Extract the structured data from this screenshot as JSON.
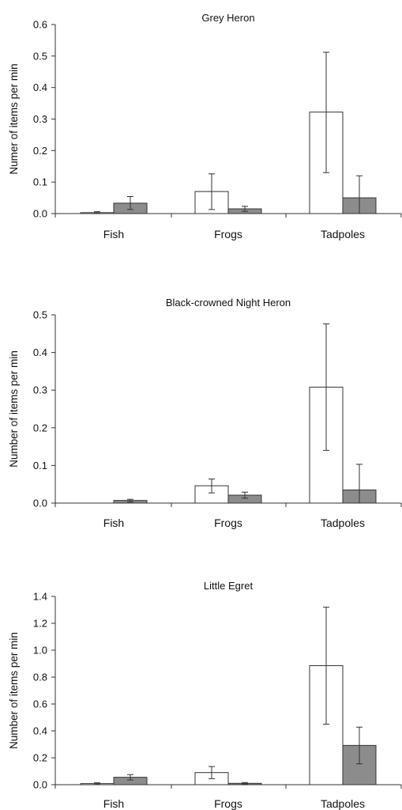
{
  "chart_data": [
    {
      "type": "bar",
      "title": "Grey Heron",
      "ylabel": "Numer of items per min",
      "xlabel": "",
      "categories": [
        "Fish",
        "Frogs",
        "Tadpoles"
      ],
      "ylim": [
        0,
        0.6
      ],
      "yticks": [
        "0.0",
        "0.1",
        "0.2",
        "0.3",
        "0.4",
        "0.5",
        "0.6"
      ],
      "series": [
        {
          "color": "#ffffff",
          "values": [
            0.003,
            0.07,
            0.322
          ],
          "err_low": [
            0.001,
            0.013,
            0.13
          ],
          "err_high": [
            0.006,
            0.126,
            0.512
          ]
        },
        {
          "color": "#8c8c8c",
          "values": [
            0.033,
            0.015,
            0.05
          ],
          "err_low": [
            0.013,
            0.007,
            0.0
          ],
          "err_high": [
            0.054,
            0.023,
            0.12
          ]
        }
      ]
    },
    {
      "type": "bar",
      "title": "Black-crowned Night Heron",
      "ylabel": "Number of items per min",
      "xlabel": "",
      "categories": [
        "Fish",
        "Frogs",
        "Tadpoles"
      ],
      "ylim": [
        0,
        0.5
      ],
      "yticks": [
        "0.0",
        "0.1",
        "0.2",
        "0.3",
        "0.4",
        "0.5"
      ],
      "series": [
        {
          "color": "#ffffff",
          "values": [
            0.0,
            0.046,
            0.308
          ],
          "err_low": [
            0.0,
            0.027,
            0.14
          ],
          "err_high": [
            0.0,
            0.064,
            0.476
          ]
        },
        {
          "color": "#8c8c8c",
          "values": [
            0.007,
            0.021,
            0.035
          ],
          "err_low": [
            0.003,
            0.013,
            0.0
          ],
          "err_high": [
            0.01,
            0.029,
            0.103
          ]
        }
      ]
    },
    {
      "type": "bar",
      "title": "Little Egret",
      "ylabel": "Number of items per min",
      "xlabel": "",
      "categories": [
        "Fish",
        "Frogs",
        "Tadpoles"
      ],
      "ylim": [
        0,
        1.4
      ],
      "yticks": [
        "0.0",
        "0.2",
        "0.4",
        "0.6",
        "0.8",
        "1.0",
        "1.2",
        "1.4"
      ],
      "series": [
        {
          "color": "#ffffff",
          "values": [
            0.008,
            0.09,
            0.885
          ],
          "err_low": [
            0.002,
            0.045,
            0.45
          ],
          "err_high": [
            0.014,
            0.135,
            1.32
          ]
        },
        {
          "color": "#8c8c8c",
          "values": [
            0.055,
            0.01,
            0.292
          ],
          "err_low": [
            0.035,
            0.004,
            0.155
          ],
          "err_high": [
            0.075,
            0.016,
            0.428
          ]
        }
      ]
    }
  ]
}
